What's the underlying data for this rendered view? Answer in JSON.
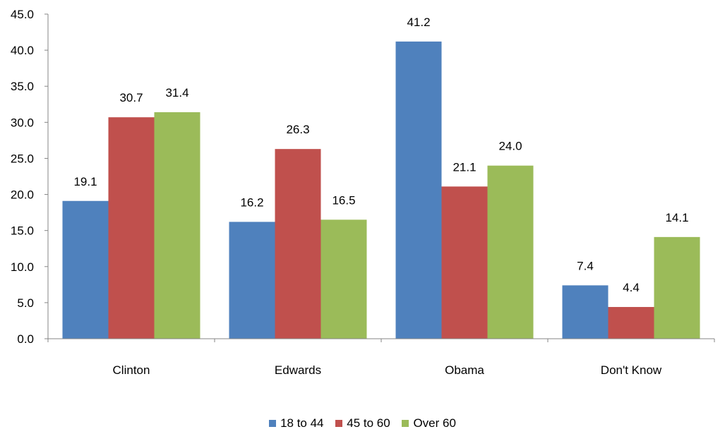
{
  "chart_data": {
    "type": "bar",
    "categories": [
      "Clinton",
      "Edwards",
      "Obama",
      "Don't Know"
    ],
    "series": [
      {
        "name": "18 to 44",
        "color": "#4F81BD",
        "values": [
          19.1,
          16.2,
          41.2,
          7.4
        ],
        "labels": [
          "19.1",
          "16.2",
          "41.2",
          "7.4"
        ]
      },
      {
        "name": "45 to 60",
        "color": "#C0504D",
        "values": [
          30.7,
          26.3,
          21.1,
          4.4
        ],
        "labels": [
          "30.7",
          "26.3",
          "21.1",
          "4.4"
        ]
      },
      {
        "name": "Over 60",
        "color": "#9BBB59",
        "values": [
          31.4,
          16.5,
          24.0,
          14.1
        ],
        "labels": [
          "31.4",
          "16.5",
          "24.0",
          "14.1"
        ]
      }
    ],
    "yticks": [
      "0.0",
      "5.0",
      "10.0",
      "15.0",
      "20.0",
      "25.0",
      "30.0",
      "35.0",
      "40.0",
      "45.0"
    ],
    "ylim": [
      0,
      45
    ],
    "grid": false,
    "legend_position": "bottom"
  }
}
